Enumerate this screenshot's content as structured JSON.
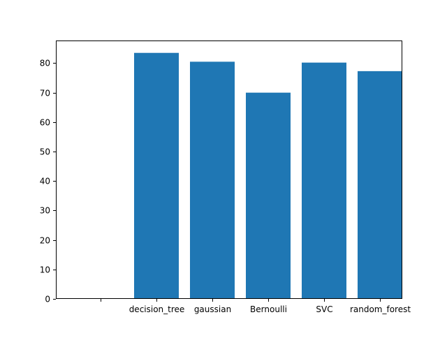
{
  "chart_data": {
    "type": "bar",
    "title": "",
    "xlabel": "",
    "ylabel": "",
    "categories": [
      "",
      "decision_tree",
      "gaussian",
      "Bernoulli",
      "SVC",
      "random_forest"
    ],
    "values": [
      0,
      83.5,
      80.5,
      70.0,
      80.2,
      77.3
    ],
    "ylim": [
      0,
      87.7
    ],
    "yticks": [
      0,
      10,
      20,
      30,
      40,
      50,
      60,
      70,
      80
    ],
    "xlim": [
      -0.8,
      5.4
    ],
    "bar_width": 0.8,
    "bar_color": "#1f77b4",
    "grid": false,
    "legend": "none"
  }
}
